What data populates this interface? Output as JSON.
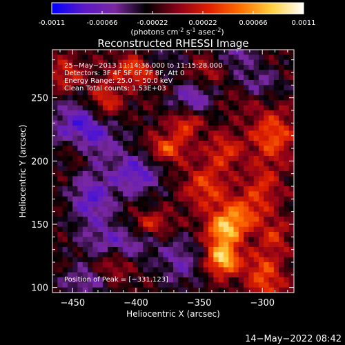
{
  "colorbar": {
    "tick_labels": [
      "-0.0011",
      "-0.00066",
      "-0.00022",
      "0.00022",
      "0.00066",
      "0.0011"
    ],
    "tick_values": [
      -0.0011,
      -0.00066,
      -0.00022,
      0.00022,
      0.00066,
      0.0011
    ],
    "range": [
      -0.0011,
      0.0011
    ],
    "unit_label": "(photons cm",
    "unit_exp1": "-2",
    "unit_mid": " s",
    "unit_exp2": "-1",
    "unit_end": " asec",
    "unit_exp3": "-2",
    "unit_close": ")",
    "stops": [
      "#0000ff",
      "#5a18c8",
      "#7a28a0",
      "#000000",
      "#8a0018",
      "#e02000",
      "#ff7000",
      "#ffd040",
      "#ffffff"
    ]
  },
  "chart_data": {
    "type": "heatmap",
    "title": "Reconstructed RHESSI Image",
    "xlabel": "Heliocentric X (arcsec)",
    "ylabel": "Heliocentric Y (arcsec)",
    "xlim": [
      -466,
      -275
    ],
    "ylim": [
      96,
      288
    ],
    "xticks": [
      -450,
      -400,
      -350,
      -300
    ],
    "xtick_labels": [
      "−450",
      "−400",
      "−350",
      "−300"
    ],
    "yticks": [
      100,
      150,
      200,
      250
    ],
    "ytick_labels": [
      "100",
      "150",
      "200",
      "250"
    ],
    "info": [
      "25−May−2013 11:14:36.000 to 11:15:28.000",
      "Detectors: 3F 4F 5F 6F 7F 8F, Att 0",
      "Energy Range: 25.0 − 50.0 keV",
      "Clean     Total counts: 1.53E+03"
    ],
    "peak_label": "Position of Peak = [−331,123]",
    "peak": [
      -331,
      123
    ],
    "grid": false,
    "blobs": [
      {
        "x": -331,
        "y": 123,
        "sx": 9,
        "sy": 9,
        "a": 0.00105
      },
      {
        "x": -330,
        "y": 145,
        "sx": 10,
        "sy": 8,
        "a": 0.0008
      },
      {
        "x": -318,
        "y": 158,
        "sx": 14,
        "sy": 10,
        "a": 0.0006
      },
      {
        "x": -345,
        "y": 180,
        "sx": 12,
        "sy": 12,
        "a": 0.0005
      },
      {
        "x": -330,
        "y": 208,
        "sx": 10,
        "sy": 10,
        "a": 0.00045
      },
      {
        "x": -375,
        "y": 210,
        "sx": 11,
        "sy": 8,
        "a": 0.0006
      },
      {
        "x": -360,
        "y": 230,
        "sx": 8,
        "sy": 7,
        "a": 0.00055
      },
      {
        "x": -292,
        "y": 220,
        "sx": 12,
        "sy": 14,
        "a": 0.0006
      },
      {
        "x": -300,
        "y": 180,
        "sx": 10,
        "sy": 12,
        "a": 0.0004
      },
      {
        "x": -425,
        "y": 245,
        "sx": 10,
        "sy": 12,
        "a": 0.00062
      },
      {
        "x": -400,
        "y": 272,
        "sx": 12,
        "sy": 8,
        "a": 0.0006
      },
      {
        "x": -455,
        "y": 268,
        "sx": 9,
        "sy": 9,
        "a": 0.00045
      },
      {
        "x": -448,
        "y": 210,
        "sx": 8,
        "sy": 10,
        "a": 0.0004
      },
      {
        "x": -388,
        "y": 150,
        "sx": 12,
        "sy": 7,
        "a": 0.00045
      },
      {
        "x": -418,
        "y": 118,
        "sx": 10,
        "sy": 9,
        "a": 0.00045
      },
      {
        "x": -300,
        "y": 115,
        "sx": 10,
        "sy": 10,
        "a": 0.0005
      },
      {
        "x": -290,
        "y": 140,
        "sx": 8,
        "sy": 9,
        "a": 0.0004
      },
      {
        "x": -345,
        "y": 270,
        "sx": 10,
        "sy": 8,
        "a": 0.0003
      },
      {
        "x": -315,
        "y": 250,
        "sx": 12,
        "sy": 8,
        "a": 0.00025
      },
      {
        "x": -295,
        "y": 100,
        "sx": 10,
        "sy": 7,
        "a": 0.00035
      },
      {
        "x": -440,
        "y": 225,
        "sx": 18,
        "sy": 16,
        "a": -0.0008
      },
      {
        "x": -400,
        "y": 190,
        "sx": 14,
        "sy": 12,
        "a": -0.0006
      },
      {
        "x": -435,
        "y": 170,
        "sx": 12,
        "sy": 14,
        "a": -0.0006
      },
      {
        "x": -415,
        "y": 135,
        "sx": 20,
        "sy": 12,
        "a": -0.0005
      },
      {
        "x": -355,
        "y": 250,
        "sx": 12,
        "sy": 10,
        "a": -0.0005
      },
      {
        "x": -305,
        "y": 260,
        "sx": 14,
        "sy": 10,
        "a": -0.0004
      },
      {
        "x": -320,
        "y": 285,
        "sx": 10,
        "sy": 8,
        "a": -0.0004
      },
      {
        "x": -365,
        "y": 120,
        "sx": 12,
        "sy": 14,
        "a": -0.0004
      },
      {
        "x": -440,
        "y": 105,
        "sx": 14,
        "sy": 8,
        "a": -0.0004
      },
      {
        "x": -380,
        "y": 280,
        "sx": 12,
        "sy": 8,
        "a": -0.0003
      }
    ]
  },
  "footer": {
    "date": "14−May−2022 08:42"
  }
}
